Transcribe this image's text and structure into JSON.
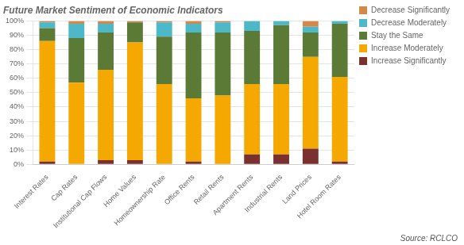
{
  "chart_data": {
    "type": "bar",
    "stacked": true,
    "title": "Future Market Sentiment of Economic Indicators",
    "annotations": [
      "Source: RCLCO"
    ],
    "categories": [
      "Interest Rates",
      "Cap Rates",
      "Institutional Cap Flows",
      "Home Values",
      "Homeownership Rate",
      "Office Rents",
      "Retail Rents",
      "Apartment Rents",
      "Industrial Rents",
      "Land Prices",
      "Hotel Room Rates"
    ],
    "series": [
      {
        "name": "Increase Significantly",
        "color": "#7B3030",
        "values": [
          2,
          0,
          3,
          3,
          0,
          2,
          0,
          7,
          7,
          11,
          2
        ]
      },
      {
        "name": "Increase Moderately",
        "color": "#F5A800",
        "values": [
          84,
          57,
          63,
          82,
          56,
          44,
          48,
          49,
          49,
          64,
          59
        ]
      },
      {
        "name": "Stay the Same",
        "color": "#5A7A35",
        "values": [
          9,
          31,
          26,
          14,
          33,
          46,
          44,
          37,
          41,
          17,
          37
        ]
      },
      {
        "name": "Decrease Moderately",
        "color": "#4DB8C8",
        "values": [
          4,
          10,
          6,
          0,
          10,
          6,
          7,
          7,
          3,
          4,
          2
        ]
      },
      {
        "name": "Decrease Significantly",
        "color": "#D4894A",
        "values": [
          1,
          2,
          2,
          1,
          1,
          2,
          1,
          0,
          0,
          4,
          0
        ]
      }
    ],
    "ylim": [
      0,
      100
    ],
    "yticks": [
      {
        "value": 0,
        "label": "0%"
      },
      {
        "value": 10,
        "label": "10%"
      },
      {
        "value": 20,
        "label": "20%"
      },
      {
        "value": 30,
        "label": "30%"
      },
      {
        "value": 40,
        "label": "40%"
      },
      {
        "value": 50,
        "label": "50%"
      },
      {
        "value": 60,
        "label": "60%"
      },
      {
        "value": 70,
        "label": "70%"
      },
      {
        "value": 80,
        "label": "80%"
      },
      {
        "value": 90,
        "label": "90%"
      },
      {
        "value": 100,
        "label": "100%"
      }
    ],
    "grid": true,
    "legend": "right"
  }
}
